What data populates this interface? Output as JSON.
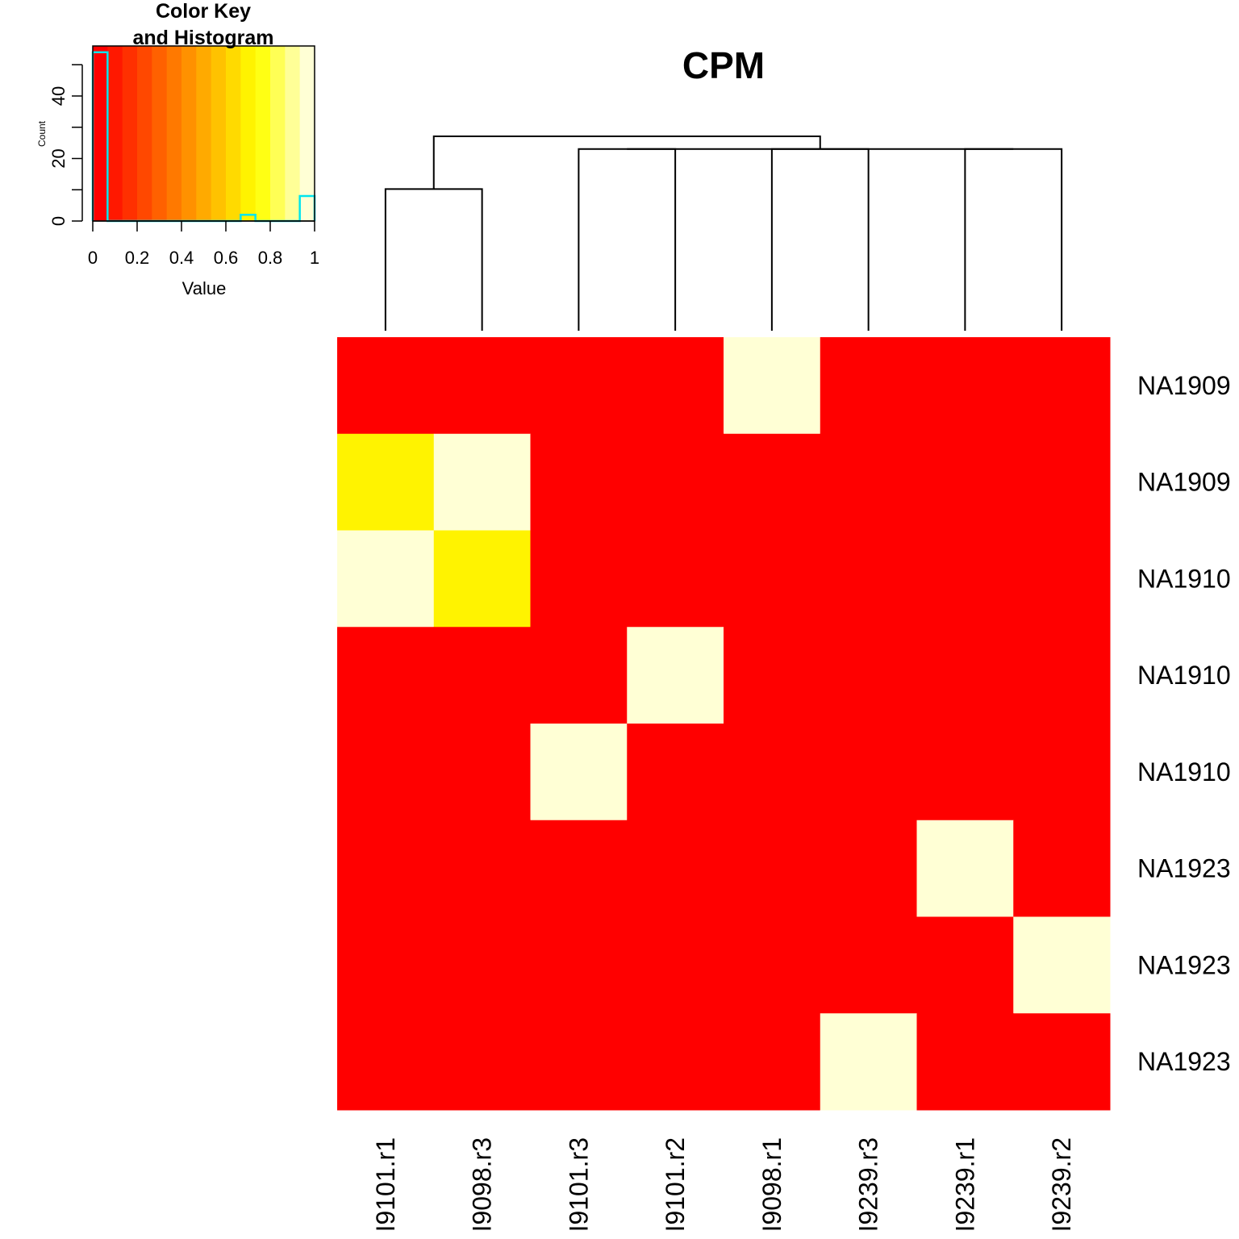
{
  "chart_data": [
    {
      "type": "heatmap",
      "title": "CPM",
      "columns": [
        "I9101.r1",
        "I9098.r3",
        "I9101.r3",
        "I9101.r2",
        "I9098.r1",
        "I9239.r3",
        "I9239.r1",
        "I9239.r2"
      ],
      "rows": [
        "NA1909",
        "NA1909",
        "NA1910",
        "NA1910",
        "NA1910",
        "NA1923",
        "NA1923",
        "NA1923"
      ],
      "values": [
        [
          0.0,
          0.0,
          0.0,
          0.0,
          1.0,
          0.0,
          0.0,
          0.0
        ],
        [
          0.72,
          1.0,
          0.0,
          0.0,
          0.0,
          0.0,
          0.0,
          0.0
        ],
        [
          1.0,
          0.72,
          0.0,
          0.0,
          0.0,
          0.0,
          0.0,
          0.0
        ],
        [
          0.0,
          0.0,
          0.0,
          1.0,
          0.0,
          0.0,
          0.0,
          0.0
        ],
        [
          0.0,
          0.0,
          1.0,
          0.0,
          0.0,
          0.0,
          0.0,
          0.0
        ],
        [
          0.0,
          0.0,
          0.0,
          0.0,
          0.0,
          0.0,
          1.0,
          0.0
        ],
        [
          0.0,
          0.0,
          0.0,
          0.0,
          0.0,
          0.0,
          0.0,
          1.0
        ],
        [
          0.0,
          0.0,
          0.0,
          0.0,
          0.0,
          1.0,
          0.0,
          0.0
        ]
      ],
      "range": [
        0,
        1
      ],
      "dendrogram": {
        "merges": [
          {
            "left": 0,
            "right": 1,
            "height": 0.78
          },
          {
            "left": 2,
            "right": 3,
            "height": 1.0
          },
          {
            "left": 4,
            "right": 5,
            "height": 1.0
          },
          {
            "left": 6,
            "right": 7,
            "height": 1.0
          },
          {
            "left": 2,
            "right": 7,
            "height": 1.0
          },
          {
            "left": 0,
            "right": 7,
            "height": 1.07
          }
        ],
        "max_height": 1.07
      }
    },
    {
      "type": "bar",
      "title": "Color Key\nand Histogram",
      "xlabel": "Value",
      "ylabel": "Count",
      "xlim": [
        0,
        1
      ],
      "ylim": [
        0,
        56
      ],
      "x_ticks": [
        "0",
        "0.2",
        "0.4",
        "0.6",
        "0.8",
        "1"
      ],
      "y_ticks": [
        "0",
        "20",
        "40"
      ],
      "bins": [
        0,
        0.0667,
        0.1333,
        0.2,
        0.2667,
        0.3333,
        0.4,
        0.4667,
        0.5333,
        0.6,
        0.6667,
        0.7333,
        0.8,
        0.8667,
        0.9333,
        1.0
      ],
      "counts": [
        54,
        0,
        0,
        0,
        0,
        0,
        0,
        0,
        0,
        0,
        2,
        0,
        0,
        0,
        8
      ],
      "colors": [
        "#FF0000",
        "#FF1800",
        "#FF3000",
        "#FF4800",
        "#FF6100",
        "#FF7900",
        "#FF9100",
        "#FFAA00",
        "#FFC200",
        "#FFDA00",
        "#FFF300",
        "#FFFF14",
        "#FFFF55",
        "#FFFF97",
        "#FFFFD5"
      ],
      "line_color": "#00E5EE"
    }
  ]
}
